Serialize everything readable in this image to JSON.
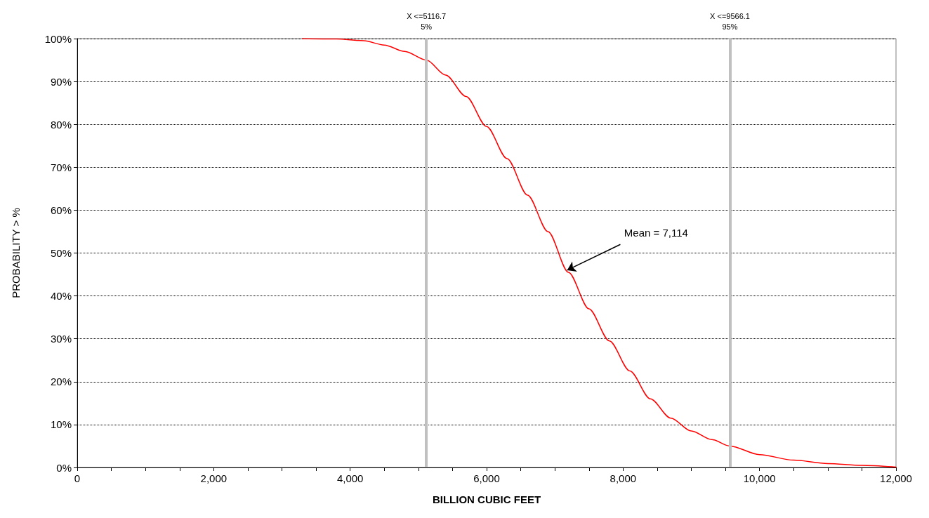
{
  "chart_data": {
    "type": "line",
    "xlabel": "BILLION CUBIC FEET",
    "ylabel": "PROBABILITY > %",
    "x": [
      3300,
      3800,
      4200,
      4500,
      4800,
      5117,
      5400,
      5700,
      6000,
      6300,
      6600,
      6900,
      7200,
      7500,
      7800,
      8100,
      8400,
      8700,
      9000,
      9300,
      9566,
      10000,
      10500,
      11000,
      11500,
      12000
    ],
    "series": [
      {
        "color": "#ff0000",
        "values": [
          100,
          99.9,
          99.5,
          98.5,
          97,
          95,
          91.5,
          86.5,
          79.5,
          72,
          63.5,
          55,
          45.5,
          37,
          29.5,
          22.5,
          16,
          11.5,
          8.5,
          6.5,
          5,
          3,
          1.7,
          0.9,
          0.5,
          0.1
        ]
      }
    ],
    "xlim": [
      0,
      12000
    ],
    "xticks": [
      0,
      {
        "value": 500,
        "label": null
      },
      {
        "value": 1000,
        "label": null
      },
      {
        "value": 1500,
        "label": null
      },
      {
        "value": 2000,
        "label": "2,000"
      },
      {
        "value": 2500,
        "label": null
      },
      {
        "value": 3000,
        "label": null
      },
      {
        "value": 3500,
        "label": null
      },
      {
        "value": 4000,
        "label": "4,000"
      },
      {
        "value": 4500,
        "label": null
      },
      {
        "value": 5000,
        "label": null
      },
      {
        "value": 5500,
        "label": null
      },
      {
        "value": 6000,
        "label": "6,000"
      },
      {
        "value": 6500,
        "label": null
      },
      {
        "value": 7000,
        "label": null
      },
      {
        "value": 7500,
        "label": null
      },
      {
        "value": 8000,
        "label": "8,000"
      },
      {
        "value": 8500,
        "label": null
      },
      {
        "value": 9000,
        "label": null
      },
      {
        "value": 9500,
        "label": null
      },
      {
        "value": 10000,
        "label": "10,000"
      },
      {
        "value": 10500,
        "label": null
      },
      {
        "value": 11000,
        "label": null
      },
      {
        "value": 11500,
        "label": null
      },
      {
        "value": 12000,
        "label": "12,000"
      }
    ],
    "ylim": [
      0,
      100
    ],
    "yticks": [
      {
        "value": 0,
        "label": "0%"
      },
      {
        "value": 10,
        "label": "10%"
      },
      {
        "value": 20,
        "label": "20%"
      },
      {
        "value": 30,
        "label": "30%"
      },
      {
        "value": 40,
        "label": "40%"
      },
      {
        "value": 50,
        "label": "50%"
      },
      {
        "value": 60,
        "label": "60%"
      },
      {
        "value": 70,
        "label": "70%"
      },
      {
        "value": 80,
        "label": "80%"
      },
      {
        "value": 90,
        "label": "90%"
      },
      {
        "value": 100,
        "label": "100%"
      }
    ],
    "grid": "y",
    "marker": "none",
    "line_style": "solid",
    "ref_lines": [
      {
        "axis": "x",
        "value": 5116.7,
        "label": "X <=5116.7\n5%",
        "color": "#c0c0c0"
      },
      {
        "axis": "x",
        "value": 9566.1,
        "label": "X <=9566.1\n95%",
        "color": "#c0c0c0"
      }
    ],
    "annotations": [
      {
        "text": "Mean = 7,114",
        "x": 7180,
        "y": 46
      }
    ]
  }
}
